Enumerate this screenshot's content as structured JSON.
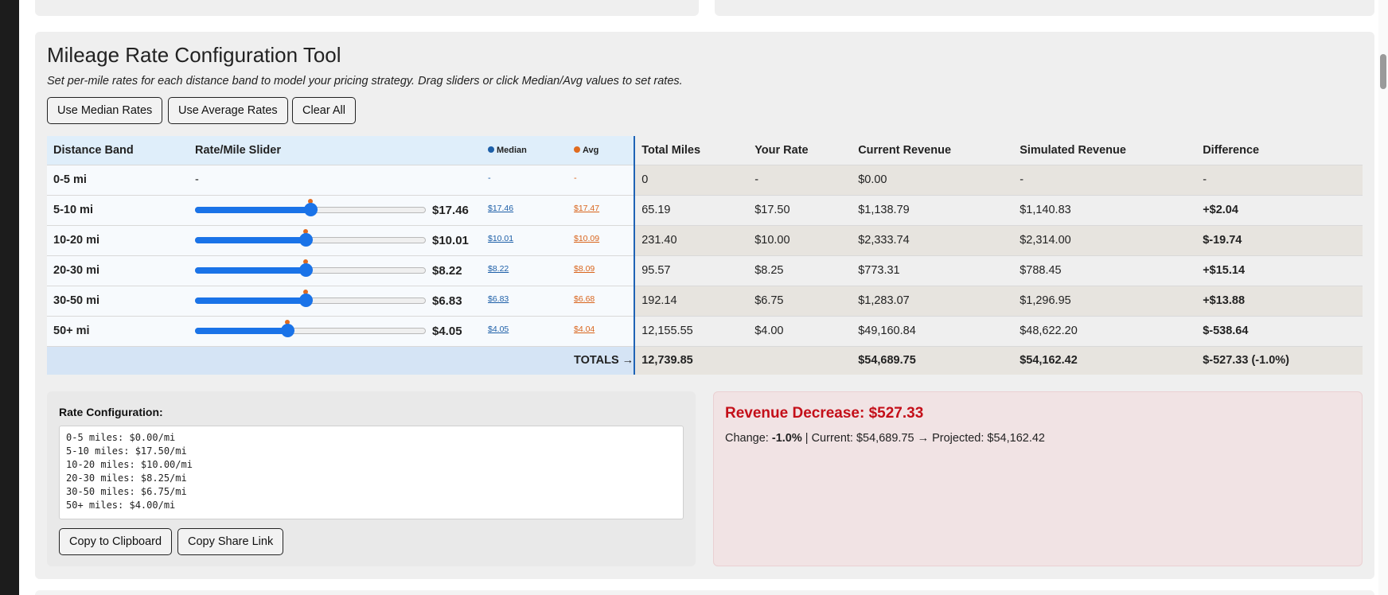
{
  "header": {
    "title": "Mileage Rate Configuration Tool",
    "subtitle": "Set per-mile rates for each distance band to model your pricing strategy. Drag sliders or click Median/Avg values to set rates."
  },
  "buttons": {
    "median": "Use Median Rates",
    "average": "Use Average Rates",
    "clear": "Clear All",
    "copy_clipboard": "Copy to Clipboard",
    "copy_link": "Copy Share Link"
  },
  "colors": {
    "median": "#1d5fa8",
    "avg": "#d9641c",
    "positive": "#1c7a1c",
    "negative": "#d0101c"
  },
  "table": {
    "headers": {
      "band": "Distance Band",
      "slider": "Rate/Mile Slider",
      "median": "Median",
      "avg": "Avg",
      "miles": "Total Miles",
      "rate": "Your Rate",
      "current": "Current Revenue",
      "simulated": "Simulated Revenue",
      "diff": "Difference"
    },
    "rows": [
      {
        "band": "0-5 mi",
        "slider_text": "-",
        "median": "-",
        "avg": "-",
        "miles": "0",
        "rate": "-",
        "current": "$0.00",
        "simulated": "-",
        "diff": "-"
      },
      {
        "band": "5-10 mi",
        "value": "$17.46",
        "median": "$17.46",
        "avg": "$17.47",
        "miles": "65.19",
        "rate": "$17.50",
        "current": "$1,138.79",
        "simulated": "$1,140.83",
        "diff": "+$2.04",
        "sign": "pos"
      },
      {
        "band": "10-20 mi",
        "value": "$10.01",
        "median": "$10.01",
        "avg": "$10.09",
        "miles": "231.40",
        "rate": "$10.00",
        "current": "$2,333.74",
        "simulated": "$2,314.00",
        "diff": "$-19.74",
        "sign": "neg"
      },
      {
        "band": "20-30 mi",
        "value": "$8.22",
        "median": "$8.22",
        "avg": "$8.09",
        "miles": "95.57",
        "rate": "$8.25",
        "current": "$773.31",
        "simulated": "$788.45",
        "diff": "+$15.14",
        "sign": "pos"
      },
      {
        "band": "30-50 mi",
        "value": "$6.83",
        "median": "$6.83",
        "avg": "$6.68",
        "miles": "192.14",
        "rate": "$6.75",
        "current": "$1,283.07",
        "simulated": "$1,296.95",
        "diff": "+$13.88",
        "sign": "pos"
      },
      {
        "band": "50+ mi",
        "value": "$4.05",
        "median": "$4.05",
        "avg": "$4.04",
        "miles": "12,155.55",
        "rate": "$4.00",
        "current": "$49,160.84",
        "simulated": "$48,622.20",
        "diff": "$-538.64",
        "sign": "neg"
      }
    ],
    "slider_levels": [
      {
        "value": 0.5,
        "avg": 0.5
      },
      {
        "value": 0.48,
        "avg": 0.48
      },
      {
        "value": 0.48,
        "avg": 0.48
      },
      {
        "value": 0.48,
        "avg": 0.48
      },
      {
        "value": 0.4,
        "avg": 0.4
      }
    ],
    "totals": {
      "label": "TOTALS →",
      "miles": "12,739.85",
      "current": "$54,689.75",
      "simulated": "$54,162.42",
      "diff": "$-527.33 (-1.0%)"
    }
  },
  "config": {
    "label": "Rate Configuration:",
    "text": "0-5 miles: $0.00/mi\n5-10 miles: $17.50/mi\n10-20 miles: $10.00/mi\n20-30 miles: $8.25/mi\n30-50 miles: $6.75/mi\n50+ miles: $4.00/mi"
  },
  "result": {
    "title": "Revenue Decrease: $527.33",
    "change_label": "Change: ",
    "change_value": "-1.0%",
    "rest": " | Current: $54,689.75 → Projected: $54,162.42"
  }
}
